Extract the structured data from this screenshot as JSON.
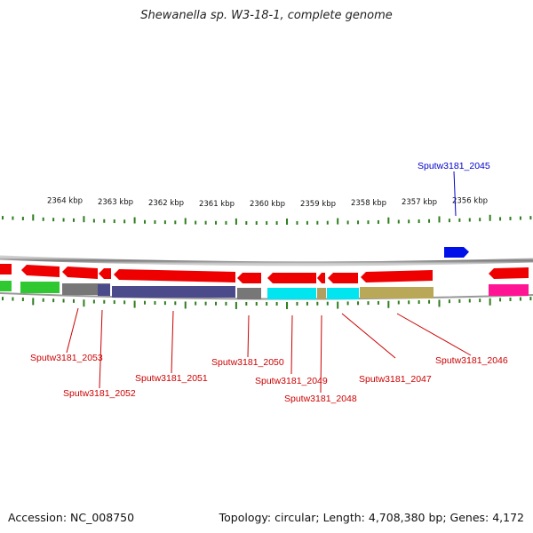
{
  "title": "Shewanella sp. W3-18-1, complete genome",
  "footer": {
    "accession": "Accession: NC_008750",
    "summary": "Topology: circular; Length: 4,708,380 bp; Genes: 4,172"
  },
  "ruler_labels": [
    "2364 kbp",
    "2363 kbp",
    "2362 kbp",
    "2361 kbp",
    "2360 kbp",
    "2359 kbp",
    "2358 kbp",
    "2357 kbp",
    "2356 kbp"
  ],
  "colors": {
    "backbone": "#888888",
    "tick": "#2e7d1e",
    "forward_gene": "#0010e8",
    "reverse_gene": "#ee0000",
    "forward_label": "#0000cc",
    "reverse_label": "#cc0000"
  },
  "genes_forward": [
    {
      "label": "Sputw3181_2045"
    }
  ],
  "genes_reverse": [
    {
      "label": "Sputw3181_2046"
    },
    {
      "label": "Sputw3181_2047"
    },
    {
      "label": "Sputw3181_2048"
    },
    {
      "label": "Sputw3181_2049"
    },
    {
      "label": "Sputw3181_2050"
    },
    {
      "label": "Sputw3181_2051"
    },
    {
      "label": "Sputw3181_2052"
    },
    {
      "label": "Sputw3181_2053"
    }
  ],
  "function_colors": [
    "#ff1493",
    "#b8a858",
    "#00e5f0",
    "#b0a060",
    "#777777",
    "#4b4b8c",
    "#30c830"
  ]
}
